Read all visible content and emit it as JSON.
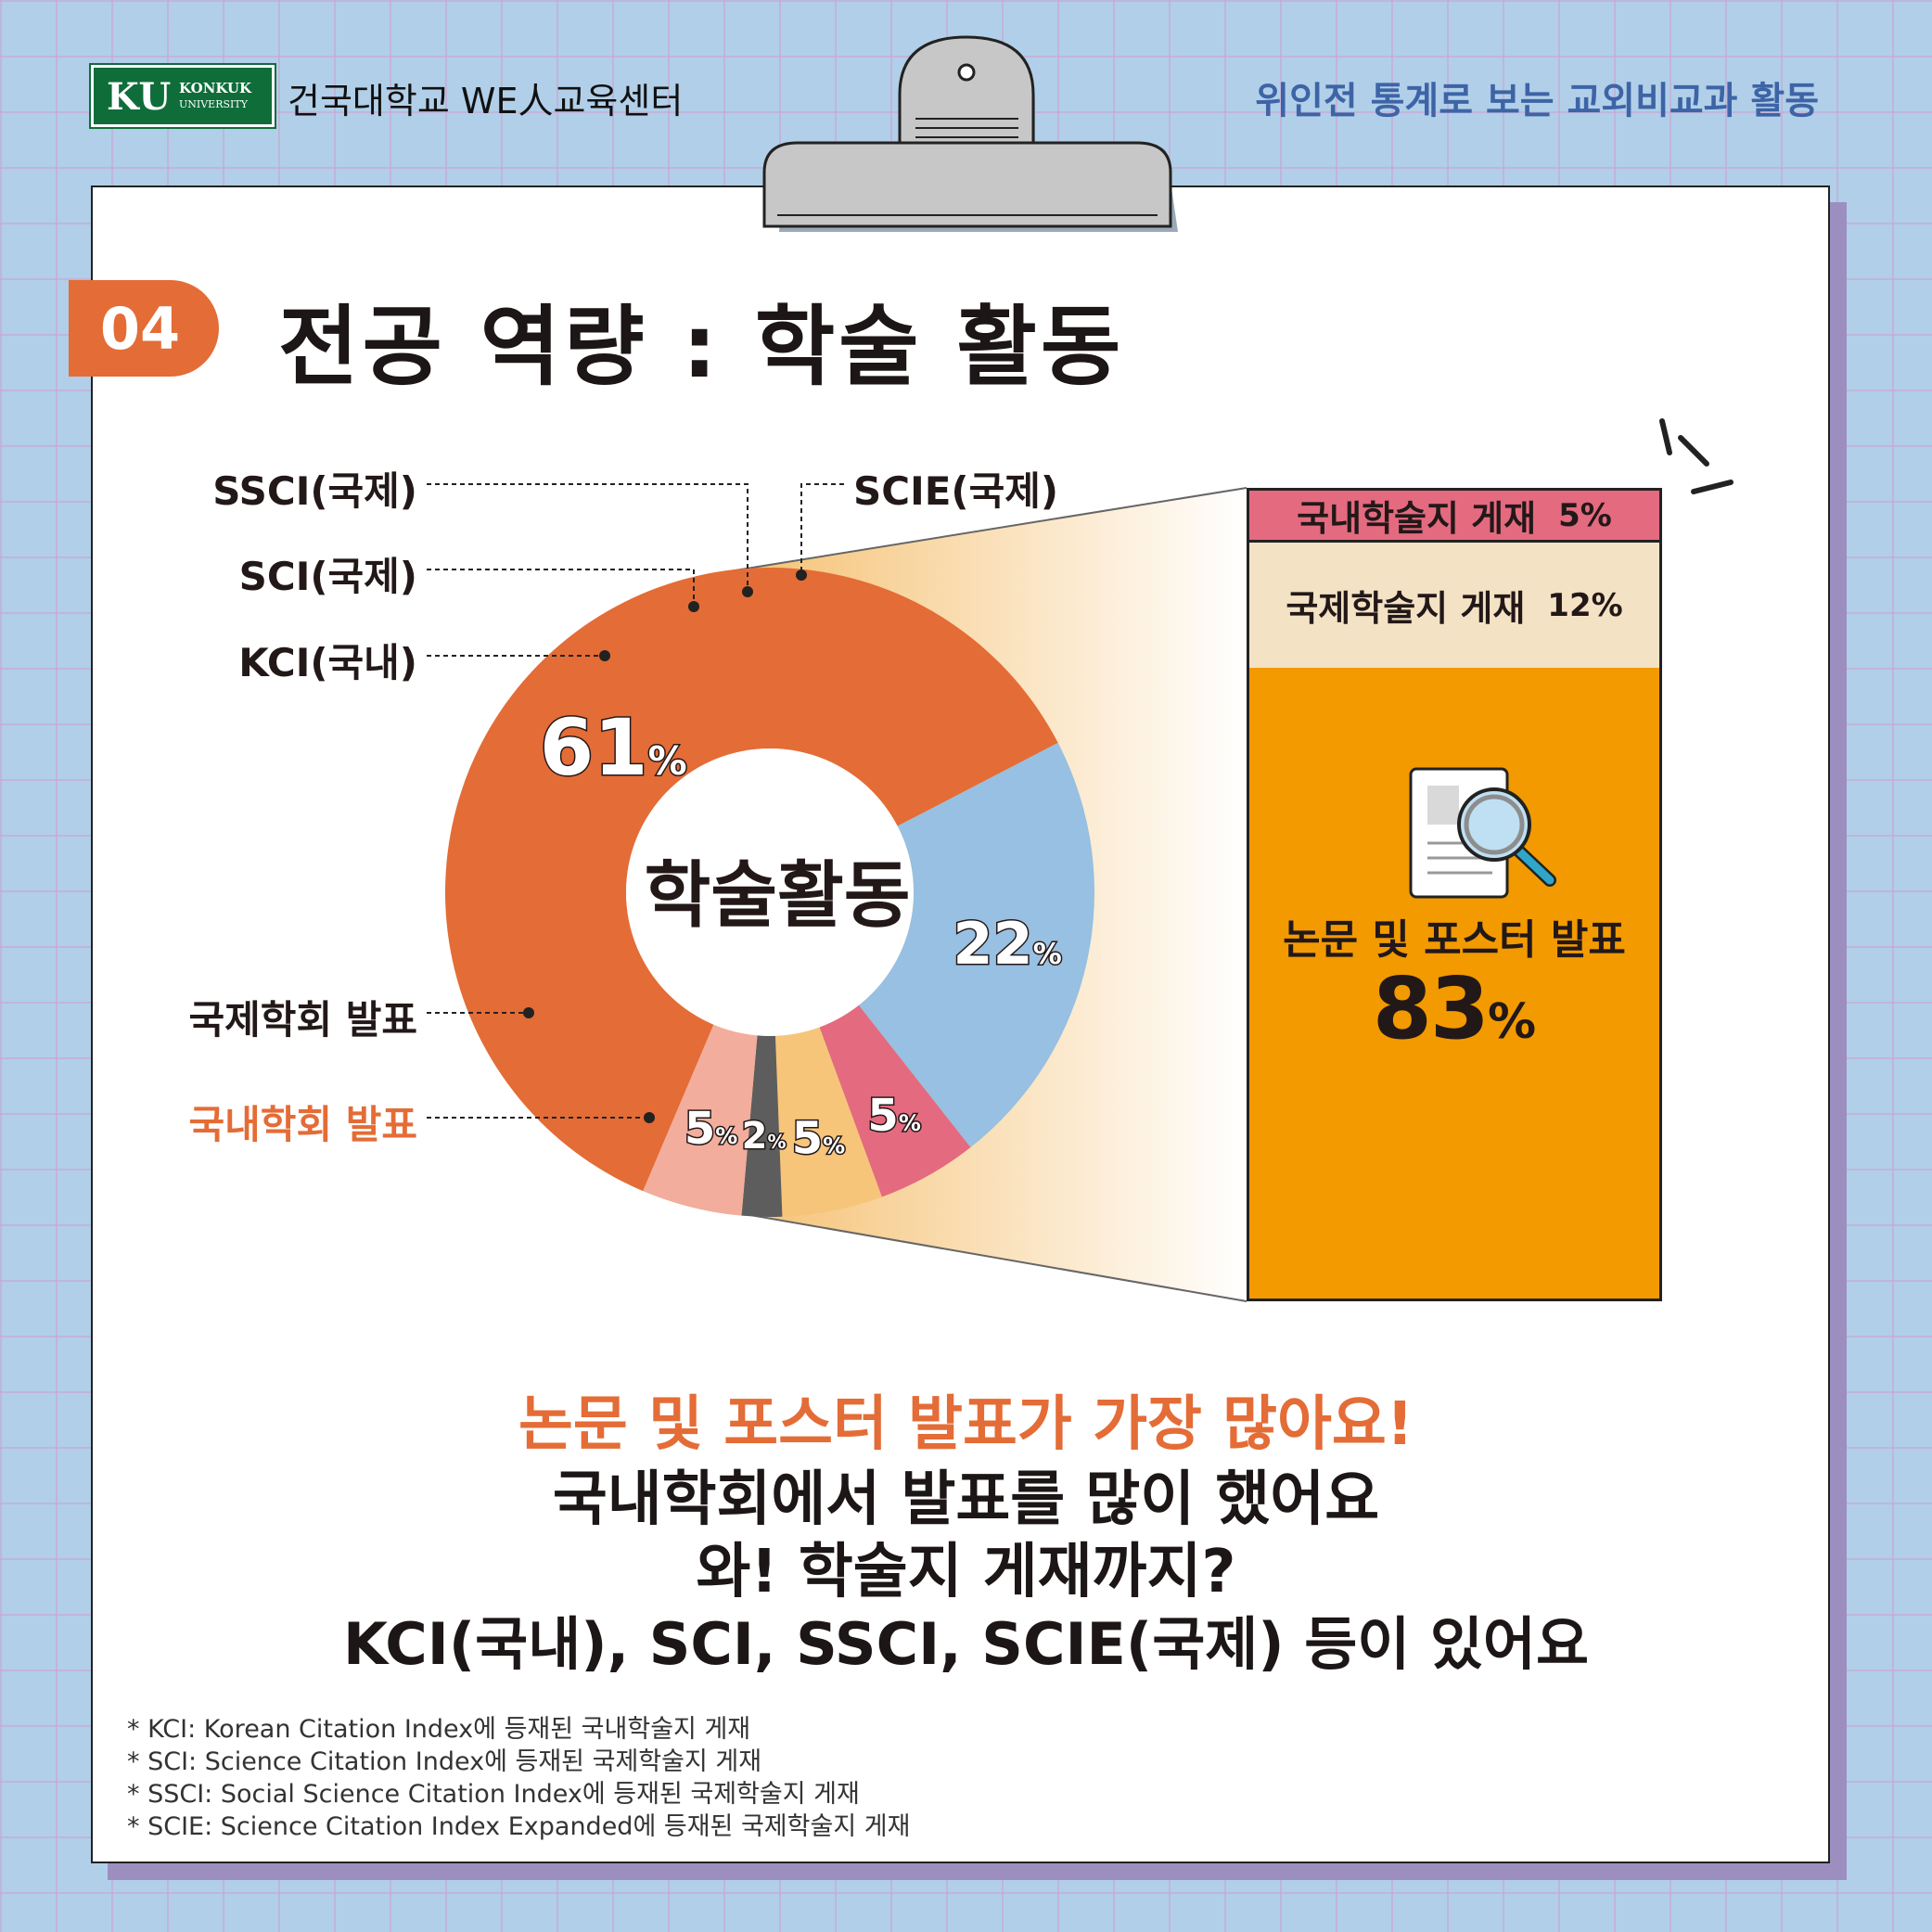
{
  "header": {
    "logo_ku": "KU",
    "logo_line1": "KONKUK",
    "logo_line2": "UNIVERSITY",
    "center_name": "건국대학교 WE人교육센터",
    "series_title": "위인전 통계로 보는 교외비교과 활동"
  },
  "section": {
    "number": "04",
    "title": "전공 역량 : 학술 활동"
  },
  "chart_data": {
    "type": "pie",
    "variant": "donut",
    "center_label": "학술활동",
    "slices": [
      {
        "label": "국내학회 발표",
        "value": 61,
        "color": "#e46c36"
      },
      {
        "label": "국제학회 발표",
        "value": 22,
        "color": "#97c0e2"
      },
      {
        "label": "KCI(국내)",
        "value": 5,
        "color": "#e46a80"
      },
      {
        "label": "SCI(국제)",
        "value": 5,
        "color": "#f6c57a"
      },
      {
        "label": "SSCI(국제)",
        "value": 2,
        "color": "#5d5d5d"
      },
      {
        "label": "SCIE(국제)",
        "value": 5,
        "color": "#f2ad9c"
      }
    ],
    "value_suffix": "%",
    "breakdown": {
      "journal_domestic": {
        "label": "국내학술지 게재",
        "value": 5
      },
      "journal_international": {
        "label": "국제학술지 게재",
        "value": 12
      },
      "presentations": {
        "label": "논문 및 포스터 발표",
        "value": 83
      }
    }
  },
  "labels": {
    "ssci": "SSCI(국제)",
    "sci": "SCI(국제)",
    "kci": "KCI(국내)",
    "scie": "SCIE(국제)",
    "intl_conf": "국제학회 발표",
    "dom_conf": "국내학회 발표"
  },
  "side": {
    "domestic_label": "국내학술지 게재",
    "domestic_pct": "5%",
    "intl_label": "국제학술지 게재",
    "intl_pct": "12%",
    "main_label": "논문 및 포스터 발표",
    "main_value": "83",
    "main_pct": "%"
  },
  "message": {
    "line1": "논문 및 포스터 발표가 가장 많아요!",
    "line2": "국내학회에서 발표를 많이 했어요",
    "line3": "와! 학술지 게재까지?",
    "line4": "KCI(국내), SCI, SSCI, SCIE(국제) 등이 있어요"
  },
  "footnotes": [
    "* KCI: Korean Citation Index에 등재된 국내학술지 게재",
    "* SCI: Science Citation Index에 등재된 국제학술지 게재",
    "* SSCI: Social Science Citation Index에 등재된 국제학술지 게재",
    "* SCIE: Science Citation Index Expanded에 등재된 국제학술지 게재"
  ],
  "colors": {
    "accent_orange": "#e46c36",
    "side_orange": "#f29a00",
    "header_blue": "#3d64a6",
    "brand_green": "#0f6d3a"
  }
}
